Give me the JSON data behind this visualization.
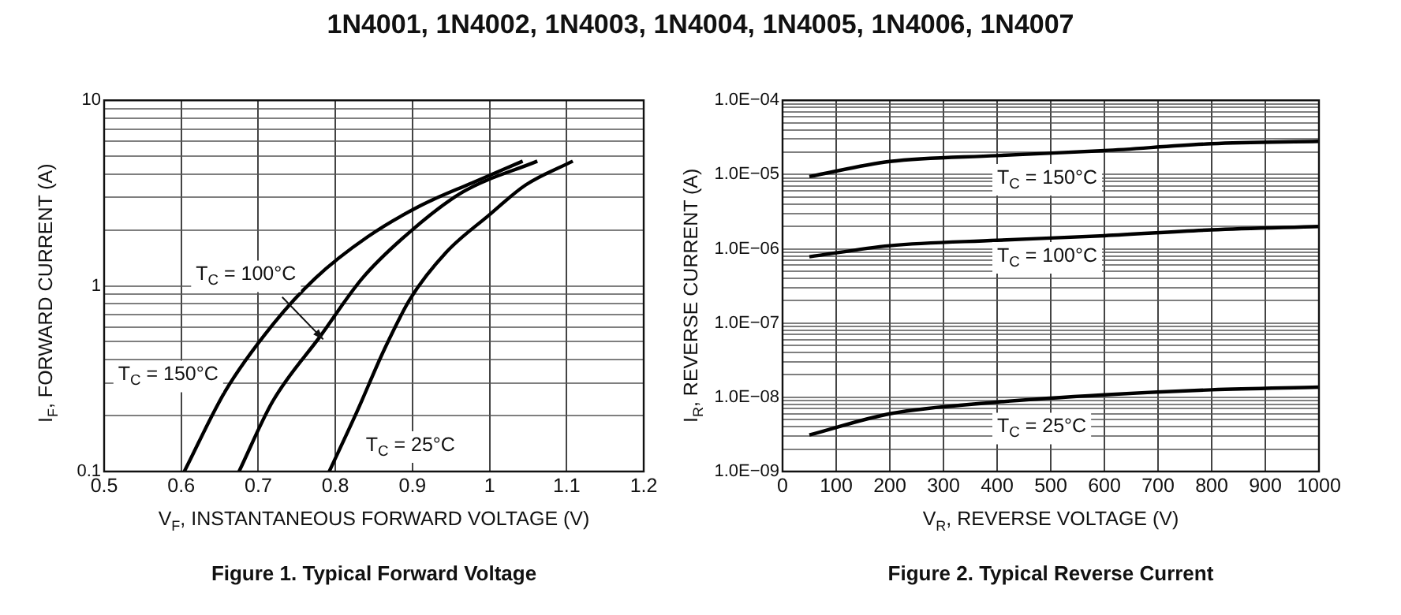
{
  "chart_data": [
    {
      "type": "line",
      "title": "1N4001, 1N4002, 1N4003, 1N4004, 1N4005, 1N4006, 1N4007",
      "xlabel": "V$_{F}$, INSTANTANEOUS FORWARD VOLTAGE (V)",
      "ylabel": "I$_{F}$, FORWARD CURRENT (A)",
      "annotations": [
        "Figure 1. Typical Forward Voltage"
      ],
      "log": "y",
      "grid": true,
      "legend": false,
      "marker": "none",
      "line_style": "solid",
      "xlim": [
        0.5,
        1.2
      ],
      "xticks": [
        0.5,
        0.6,
        0.7,
        0.8,
        0.9,
        1,
        1.1,
        1.2
      ],
      "ylim": [
        0.1,
        10
      ],
      "yticks": [
        0.1,
        {
          "value": 0.2,
          "label": null
        },
        {
          "value": 0.3,
          "label": null
        },
        {
          "value": 0.4,
          "label": null
        },
        {
          "value": 0.5,
          "label": null
        },
        {
          "value": 0.6,
          "label": null
        },
        {
          "value": 0.7,
          "label": null
        },
        {
          "value": 0.8,
          "label": null
        },
        {
          "value": 0.9,
          "label": null
        },
        1,
        {
          "value": 2,
          "label": null
        },
        {
          "value": 3,
          "label": null
        },
        {
          "value": 4,
          "label": null
        },
        {
          "value": 5,
          "label": null
        },
        {
          "value": 6,
          "label": null
        },
        {
          "value": 7,
          "label": null
        },
        {
          "value": 8,
          "label": null
        },
        {
          "value": 9,
          "label": null
        },
        10
      ],
      "series": [
        {
          "name": "T$_{C}$ = 150°C",
          "color": "#000000",
          "x": [
            0.604,
            0.657,
            0.719,
            0.774,
            0.842,
            0.91,
            0.978,
            1.043
          ],
          "values": [
            0.1,
            0.27,
            0.62,
            1.1,
            1.84,
            2.7,
            3.6,
            4.7
          ]
        },
        {
          "name": "T$_{C}$ = 100°C",
          "color": "#000000",
          "x": [
            0.675,
            0.719,
            0.781,
            0.835,
            0.897,
            0.965,
            1.062
          ],
          "values": [
            0.1,
            0.24,
            0.54,
            1.1,
            1.96,
            3.2,
            4.7
          ]
        },
        {
          "name": "T$_{C}$ = 25°C",
          "color": "#000000",
          "x": [
            0.792,
            0.828,
            0.863,
            0.897,
            0.944,
            0.999,
            1.047,
            1.108
          ],
          "values": [
            0.1,
            0.21,
            0.45,
            0.85,
            1.52,
            2.4,
            3.5,
            4.7
          ]
        }
      ]
    },
    {
      "type": "line",
      "xlabel": "V$_{R}$, REVERSE VOLTAGE (V)",
      "ylabel": "I$_{R}$, REVERSE CURRENT (A)",
      "annotations": [
        "Figure 2. Typical Reverse Current"
      ],
      "log": "y",
      "grid": true,
      "legend": false,
      "marker": "none",
      "line_style": "solid",
      "xlim": [
        0,
        1000
      ],
      "xticks": [
        0,
        100,
        200,
        300,
        400,
        500,
        600,
        700,
        800,
        900,
        1000
      ],
      "ylim": [
        1e-09,
        0.0001
      ],
      "yticks": [
        {
          "value": 1e-09,
          "label": "1.0E−09"
        },
        {
          "value": 2e-09,
          "label": null
        },
        {
          "value": 3e-09,
          "label": null
        },
        {
          "value": 4e-09,
          "label": null
        },
        {
          "value": 5e-09,
          "label": null
        },
        {
          "value": 6e-09,
          "label": null
        },
        {
          "value": 7e-09,
          "label": null
        },
        {
          "value": 8e-09,
          "label": null
        },
        {
          "value": 9e-09,
          "label": null
        },
        {
          "value": 1e-08,
          "label": "1.0E−08"
        },
        {
          "value": 2e-08,
          "label": null
        },
        {
          "value": 3e-08,
          "label": null
        },
        {
          "value": 4e-08,
          "label": null
        },
        {
          "value": 5e-08,
          "label": null
        },
        {
          "value": 6e-08,
          "label": null
        },
        {
          "value": 7e-08,
          "label": null
        },
        {
          "value": 8e-08,
          "label": null
        },
        {
          "value": 9e-08,
          "label": null
        },
        {
          "value": 1e-07,
          "label": "1.0E−07"
        },
        {
          "value": 2e-07,
          "label": null
        },
        {
          "value": 3e-07,
          "label": null
        },
        {
          "value": 4e-07,
          "label": null
        },
        {
          "value": 5e-07,
          "label": null
        },
        {
          "value": 6e-07,
          "label": null
        },
        {
          "value": 7e-07,
          "label": null
        },
        {
          "value": 8e-07,
          "label": null
        },
        {
          "value": 9e-07,
          "label": null
        },
        {
          "value": 1e-06,
          "label": "1.0E−06"
        },
        {
          "value": 2e-06,
          "label": null
        },
        {
          "value": 3e-06,
          "label": null
        },
        {
          "value": 4e-06,
          "label": null
        },
        {
          "value": 5e-06,
          "label": null
        },
        {
          "value": 6e-06,
          "label": null
        },
        {
          "value": 7e-06,
          "label": null
        },
        {
          "value": 8e-06,
          "label": null
        },
        {
          "value": 9e-06,
          "label": null
        },
        {
          "value": 1e-05,
          "label": "1.0E−05"
        },
        {
          "value": 2e-05,
          "label": null
        },
        {
          "value": 3e-05,
          "label": null
        },
        {
          "value": 4e-05,
          "label": null
        },
        {
          "value": 5e-05,
          "label": null
        },
        {
          "value": 6e-05,
          "label": null
        },
        {
          "value": 7e-05,
          "label": null
        },
        {
          "value": 8e-05,
          "label": null
        },
        {
          "value": 9e-05,
          "label": null
        },
        {
          "value": 0.0001,
          "label": "1.0E−04"
        }
      ],
      "series": [
        {
          "name": "T$_{C}$ = 150°C",
          "color": "#000000",
          "x": [
            50,
            200,
            400,
            600,
            800,
            1000
          ],
          "values": [
            9.4e-06,
            1.5e-05,
            1.8e-05,
            2.1e-05,
            2.6e-05,
            2.8e-05
          ]
        },
        {
          "name": "T$_{C}$ = 100°C",
          "color": "#000000",
          "x": [
            50,
            200,
            400,
            600,
            800,
            1000
          ],
          "values": [
            7.8e-07,
            1.1e-06,
            1.3e-06,
            1.5e-06,
            1.8e-06,
            2e-06
          ]
        },
        {
          "name": "T$_{C}$ = 25°C",
          "color": "#000000",
          "x": [
            50,
            200,
            400,
            600,
            800,
            1000
          ],
          "values": [
            3.1e-09,
            6e-09,
            8.6e-09,
            1.08e-08,
            1.26e-08,
            1.37e-08
          ]
        }
      ]
    }
  ]
}
